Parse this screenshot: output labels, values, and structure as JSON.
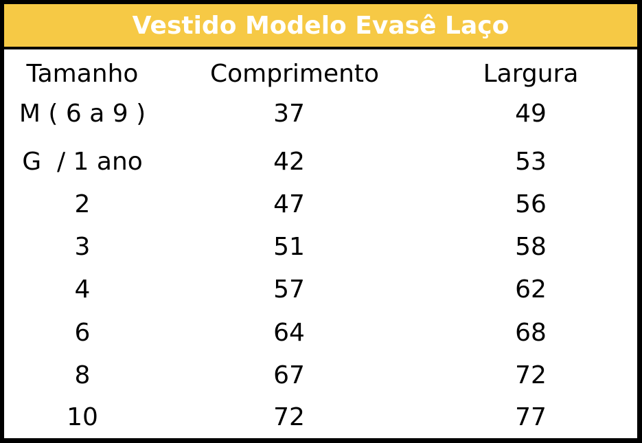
{
  "title": "Vestido Modelo Evasê Laço",
  "colors": {
    "title_background": "#f6c945",
    "title_text": "#ffffff",
    "border": "#000000",
    "text": "#000000"
  },
  "headers": [
    "Tamanho",
    "Comprimento",
    "Largura"
  ],
  "rows": [
    [
      "M ( 6 a 9 )",
      "37",
      "49"
    ],
    [
      "G  / 1 ano",
      "42",
      "53"
    ],
    [
      "2",
      "47",
      "56"
    ],
    [
      "3",
      "51",
      "58"
    ],
    [
      "4",
      "57",
      "62"
    ],
    [
      "6",
      "64",
      "68"
    ],
    [
      "8",
      "67",
      "72"
    ],
    [
      "10",
      "72",
      "77"
    ]
  ]
}
